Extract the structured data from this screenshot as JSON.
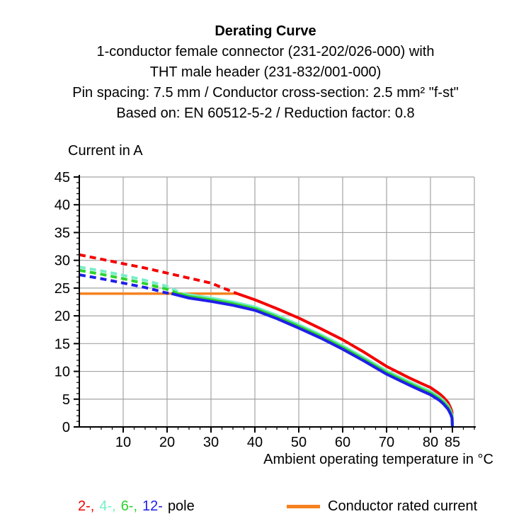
{
  "title": {
    "heading": "Derating Curve",
    "line1": "1-conductor female connector (231-202/026-000) with",
    "line2": "THT male header (231-832/001-000)",
    "line3": "Pin spacing: 7.5 mm / Conductor cross-section: 2.5 mm² \"f-st\"",
    "line4": "Based on: EN 60512-5-2 / Reduction factor: 0.8"
  },
  "y_axis_label": "Current in A",
  "x_axis_label": "Ambient operating temperature in °C",
  "legend": {
    "poles": [
      {
        "label": "2-,",
        "color": "#f40000"
      },
      {
        "label": "4-,",
        "color": "#77eec9"
      },
      {
        "label": "6-,",
        "color": "#2cd32c"
      },
      {
        "label": "12-",
        "color": "#1f1fe8"
      }
    ],
    "poles_suffix": "pole",
    "rated": {
      "label": "Conductor rated current",
      "color": "#f5821f"
    }
  },
  "chart_data": {
    "type": "line",
    "title": "Derating Curve",
    "xlabel": "Ambient operating temperature in °C",
    "ylabel": "Current in A",
    "xlim": [
      0,
      90
    ],
    "ylim": [
      0,
      45
    ],
    "grid": true,
    "grid_color": "#a3a3a3",
    "x_major_ticks": [
      10,
      20,
      30,
      40,
      50,
      60,
      70,
      80,
      85
    ],
    "x_grid": [
      10,
      20,
      30,
      40,
      50,
      60,
      70,
      80,
      90
    ],
    "x_minor_step": 2.5,
    "y_major_ticks": [
      0,
      5,
      10,
      15,
      20,
      25,
      30,
      35,
      40,
      45
    ],
    "y_grid": [
      5,
      10,
      15,
      20,
      25,
      30,
      35,
      40,
      45
    ],
    "y_minor_step": 1,
    "rated_current": {
      "label": "Conductor rated current",
      "value": 24,
      "x_start": 0,
      "x_end": 36,
      "color": "#f5821f"
    },
    "series": [
      {
        "name": "2-pole",
        "color": "#f40000",
        "dashed": [
          [
            0,
            31
          ],
          [
            5,
            30.2
          ],
          [
            10,
            29.4
          ],
          [
            15,
            28.6
          ],
          [
            20,
            27.7
          ],
          [
            25,
            26.8
          ],
          [
            30,
            25.9
          ],
          [
            35,
            24.3
          ],
          [
            36,
            24
          ]
        ],
        "solid": [
          [
            36,
            24
          ],
          [
            40,
            22.9
          ],
          [
            45,
            21.3
          ],
          [
            50,
            19.6
          ],
          [
            55,
            17.7
          ],
          [
            60,
            15.7
          ],
          [
            65,
            13.4
          ],
          [
            70,
            10.9
          ],
          [
            75,
            8.9
          ],
          [
            78,
            7.8
          ],
          [
            80,
            7.1
          ],
          [
            82,
            6.0
          ],
          [
            83,
            5.3
          ],
          [
            84,
            4.4
          ],
          [
            84.6,
            3.4
          ],
          [
            84.9,
            2.7
          ],
          [
            85,
            0
          ]
        ]
      },
      {
        "name": "4-pole",
        "color": "#77eec9",
        "dashed": [
          [
            0,
            28.8
          ],
          [
            5,
            28.1
          ],
          [
            10,
            27.3
          ],
          [
            15,
            26.4
          ],
          [
            20,
            25.3
          ],
          [
            23.5,
            24
          ]
        ],
        "solid": [
          [
            23.5,
            24
          ],
          [
            25,
            23.8
          ],
          [
            30,
            23.2
          ],
          [
            35,
            22.5
          ],
          [
            40,
            21.6
          ],
          [
            45,
            20.1
          ],
          [
            50,
            18.4
          ],
          [
            55,
            16.6
          ],
          [
            60,
            14.6
          ],
          [
            65,
            12.4
          ],
          [
            70,
            10.1
          ],
          [
            75,
            8.2
          ],
          [
            78,
            7.1
          ],
          [
            80,
            6.4
          ],
          [
            82,
            5.4
          ],
          [
            83,
            4.7
          ],
          [
            84,
            3.8
          ],
          [
            84.6,
            2.9
          ],
          [
            84.9,
            2.2
          ],
          [
            85,
            0
          ]
        ]
      },
      {
        "name": "6-pole",
        "color": "#2cd32c",
        "dashed": [
          [
            0,
            28.2
          ],
          [
            5,
            27.5
          ],
          [
            10,
            26.7
          ],
          [
            15,
            25.8
          ],
          [
            20,
            24.8
          ],
          [
            22.5,
            24
          ]
        ],
        "solid": [
          [
            22.5,
            24
          ],
          [
            25,
            23.5
          ],
          [
            30,
            22.9
          ],
          [
            35,
            22.2
          ],
          [
            40,
            21.3
          ],
          [
            45,
            19.8
          ],
          [
            50,
            18.1
          ],
          [
            55,
            16.3
          ],
          [
            60,
            14.3
          ],
          [
            65,
            12.1
          ],
          [
            70,
            9.8
          ],
          [
            75,
            7.9
          ],
          [
            78,
            6.8
          ],
          [
            80,
            6.1
          ],
          [
            82,
            5.1
          ],
          [
            83,
            4.4
          ],
          [
            84,
            3.5
          ],
          [
            84.6,
            2.6
          ],
          [
            84.9,
            1.9
          ],
          [
            85,
            0
          ]
        ]
      },
      {
        "name": "12-pole",
        "color": "#1f1fe8",
        "dashed": [
          [
            0,
            27.4
          ],
          [
            5,
            26.7
          ],
          [
            10,
            25.9
          ],
          [
            15,
            25.1
          ],
          [
            20,
            24.1
          ],
          [
            21,
            24
          ]
        ],
        "solid": [
          [
            21,
            24
          ],
          [
            25,
            23.2
          ],
          [
            30,
            22.6
          ],
          [
            35,
            21.9
          ],
          [
            40,
            21.0
          ],
          [
            45,
            19.5
          ],
          [
            50,
            17.8
          ],
          [
            55,
            16.0
          ],
          [
            60,
            14.0
          ],
          [
            65,
            11.8
          ],
          [
            70,
            9.5
          ],
          [
            75,
            7.6
          ],
          [
            78,
            6.5
          ],
          [
            80,
            5.8
          ],
          [
            82,
            4.8
          ],
          [
            83,
            4.1
          ],
          [
            84,
            3.2
          ],
          [
            84.6,
            2.3
          ],
          [
            84.9,
            1.6
          ],
          [
            85,
            0
          ]
        ]
      }
    ]
  }
}
